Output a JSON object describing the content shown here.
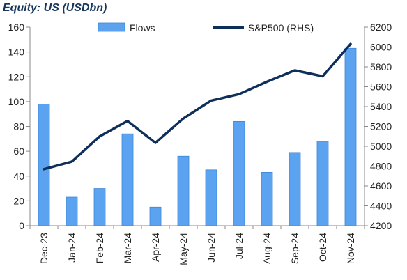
{
  "chart_data": {
    "type": "bar",
    "title": "Equity: US (USDbn)",
    "categories": [
      "Dec-23",
      "Jan-24",
      "Feb-24",
      "Mar-24",
      "Apr-24",
      "May-24",
      "Jun-24",
      "Jul-24",
      "Aug-24",
      "Sep-24",
      "Oct-24",
      "Nov-24"
    ],
    "series": [
      {
        "name": "Flows",
        "type": "bar",
        "axis": "left",
        "color": "#5ba3f0",
        "values": [
          98,
          23,
          30,
          74,
          15,
          56,
          45,
          84,
          43,
          59,
          68,
          143
        ]
      },
      {
        "name": "S&P500 (RHS)",
        "type": "line",
        "axis": "right",
        "color": "#0e2f5a",
        "values": [
          4770,
          4845,
          5100,
          5255,
          5035,
          5280,
          5460,
          5525,
          5650,
          5765,
          5705,
          6030
        ]
      }
    ],
    "ylim": [
      0,
      160
    ],
    "y_ticks": [
      0,
      20,
      40,
      60,
      80,
      100,
      120,
      140,
      160
    ],
    "y2lim": [
      4200,
      6200
    ],
    "y2_ticks": [
      4200,
      4400,
      4600,
      4800,
      5000,
      5200,
      5400,
      5600,
      5800,
      6000,
      6200
    ],
    "grid": false,
    "legend_position": "top-center"
  }
}
